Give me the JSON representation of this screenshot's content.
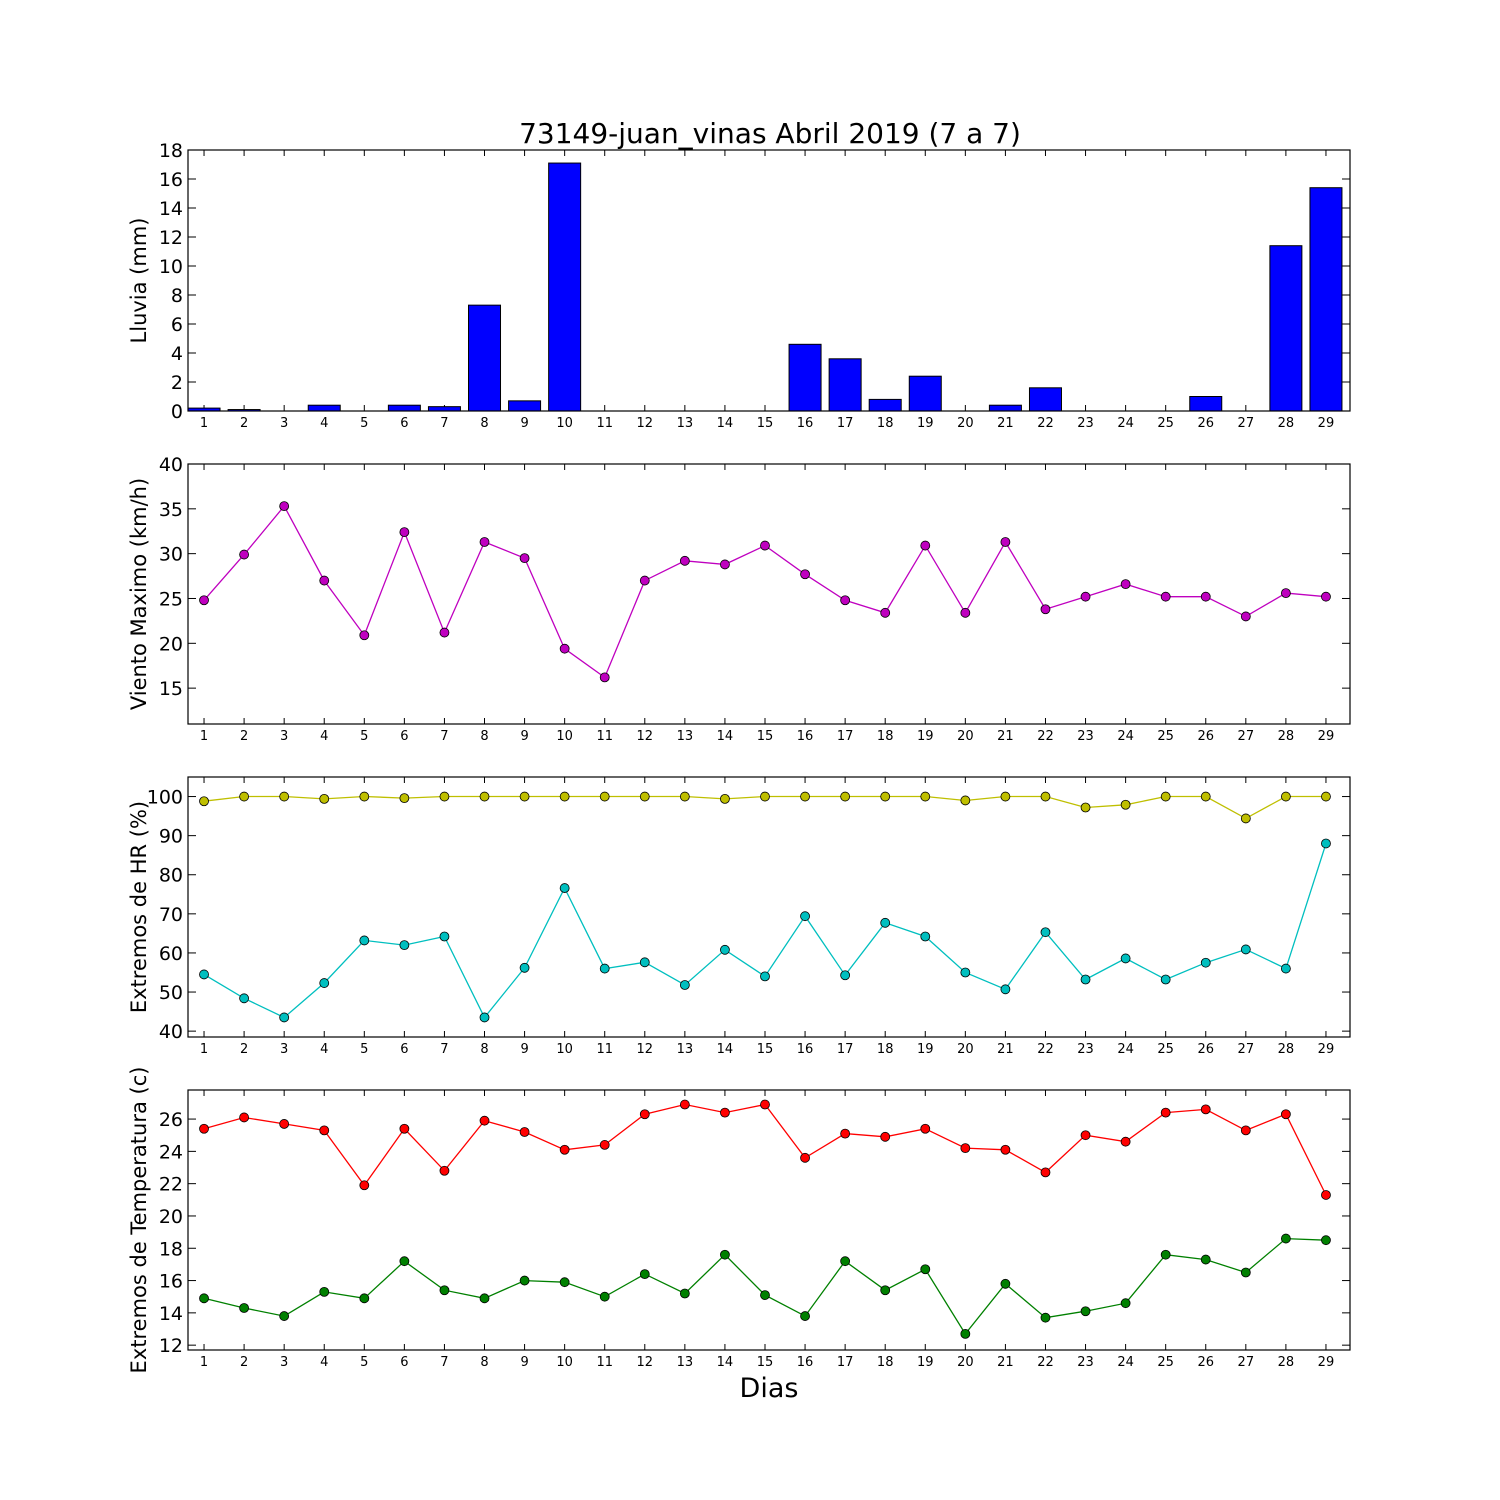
{
  "title": "73149-juan_vinas Abril 2019  (7 a 7)",
  "xlabel": "Dias",
  "chart_data": [
    {
      "type": "bar",
      "ylabel": "Lluvia (mm)",
      "ylim": [
        0,
        18
      ],
      "yticks": [
        0,
        2,
        4,
        6,
        8,
        10,
        12,
        14,
        16,
        18
      ],
      "x": [
        1,
        2,
        3,
        4,
        5,
        6,
        7,
        8,
        9,
        10,
        11,
        12,
        13,
        14,
        15,
        16,
        17,
        18,
        19,
        20,
        21,
        22,
        23,
        24,
        25,
        26,
        27,
        28,
        29
      ],
      "series": [
        {
          "color": "#0000ff",
          "values": [
            0.2,
            0.1,
            0,
            0.4,
            0,
            0.4,
            0.3,
            7.3,
            0.7,
            17.1,
            0,
            0,
            0,
            0,
            0,
            4.6,
            3.6,
            0.8,
            2.4,
            0,
            0.4,
            1.6,
            0,
            0,
            0,
            1.0,
            0,
            11.4,
            15.4
          ]
        }
      ]
    },
    {
      "type": "line",
      "ylabel": "Viento Maximo (km/h)",
      "ylim": [
        11,
        40
      ],
      "yticks": [
        15,
        20,
        25,
        30,
        35,
        40
      ],
      "x": [
        1,
        2,
        3,
        4,
        5,
        6,
        7,
        8,
        9,
        10,
        11,
        12,
        13,
        14,
        15,
        16,
        17,
        18,
        19,
        20,
        21,
        22,
        23,
        24,
        25,
        26,
        27,
        28,
        29
      ],
      "series": [
        {
          "color": "#bf00bf",
          "values": [
            24.8,
            29.9,
            35.3,
            27.0,
            20.9,
            32.4,
            21.2,
            31.3,
            29.5,
            19.4,
            16.2,
            27.0,
            29.2,
            28.8,
            30.9,
            27.7,
            24.8,
            23.4,
            30.9,
            23.4,
            31.3,
            23.8,
            25.2,
            26.6,
            25.2,
            25.2,
            23.0,
            25.6,
            25.2
          ]
        }
      ]
    },
    {
      "type": "line",
      "ylabel": "Extremos de HR (%)",
      "ylim": [
        38.5,
        105
      ],
      "yticks": [
        40,
        50,
        60,
        70,
        80,
        90,
        100
      ],
      "x": [
        1,
        2,
        3,
        4,
        5,
        6,
        7,
        8,
        9,
        10,
        11,
        12,
        13,
        14,
        15,
        16,
        17,
        18,
        19,
        20,
        21,
        22,
        23,
        24,
        25,
        26,
        27,
        28,
        29
      ],
      "series": [
        {
          "color": "#bfbf00",
          "values": [
            98.8,
            100,
            100,
            99.4,
            100,
            99.6,
            100,
            100,
            100,
            100,
            100,
            100,
            100,
            99.4,
            100,
            100,
            100,
            100,
            100,
            99.0,
            100,
            100,
            97.2,
            97.9,
            100,
            100,
            94.4,
            100,
            100
          ]
        },
        {
          "color": "#00bfbf",
          "values": [
            54.5,
            48.4,
            43.5,
            52.3,
            63.2,
            62.0,
            64.2,
            43.5,
            56.2,
            76.6,
            56.0,
            57.6,
            51.8,
            60.8,
            54.0,
            69.4,
            54.3,
            67.7,
            64.2,
            55.0,
            50.7,
            65.3,
            53.2,
            58.6,
            53.2,
            57.5,
            60.9,
            56.0,
            88.0
          ]
        }
      ]
    },
    {
      "type": "line",
      "ylabel": "Extremos de Temperatura (c)",
      "ylim": [
        11.7,
        27.8
      ],
      "yticks": [
        12,
        14,
        16,
        18,
        20,
        22,
        24,
        26
      ],
      "x": [
        1,
        2,
        3,
        4,
        5,
        6,
        7,
        8,
        9,
        10,
        11,
        12,
        13,
        14,
        15,
        16,
        17,
        18,
        19,
        20,
        21,
        22,
        23,
        24,
        25,
        26,
        27,
        28,
        29
      ],
      "series": [
        {
          "color": "#ff0000",
          "values": [
            25.4,
            26.1,
            25.7,
            25.3,
            21.9,
            25.4,
            22.8,
            25.9,
            25.2,
            24.1,
            24.4,
            26.3,
            26.9,
            26.4,
            26.9,
            23.6,
            25.1,
            24.9,
            25.4,
            24.2,
            24.1,
            22.7,
            25.0,
            24.6,
            26.4,
            26.6,
            25.3,
            26.3,
            21.3
          ]
        },
        {
          "color": "#008000",
          "values": [
            14.9,
            14.3,
            13.8,
            15.3,
            14.9,
            17.2,
            15.4,
            14.9,
            16.0,
            15.9,
            15.0,
            16.4,
            15.2,
            17.6,
            15.1,
            13.8,
            17.2,
            15.4,
            16.7,
            12.7,
            15.8,
            13.7,
            14.1,
            14.6,
            17.6,
            17.3,
            16.5,
            18.6,
            18.5
          ]
        }
      ]
    }
  ]
}
